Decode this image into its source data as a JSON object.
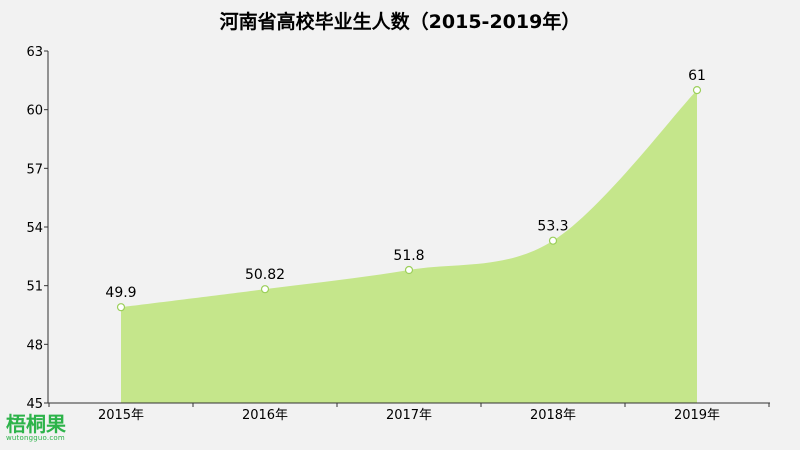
{
  "chart_data": {
    "type": "area",
    "title": "河南省高校毕业生人数（2015-2019年）",
    "xlabel": "",
    "ylabel": "",
    "categories": [
      "2015年",
      "2016年",
      "2017年",
      "2018年",
      "2019年"
    ],
    "values": [
      49.9,
      50.82,
      51.8,
      53.3,
      61
    ],
    "data_labels": [
      "49.9",
      "50.82",
      "51.8",
      "53.3",
      "61"
    ],
    "ylim": [
      45,
      63
    ],
    "yticks": [
      "45",
      "48",
      "51",
      "54",
      "57",
      "60",
      "63"
    ],
    "grid": false,
    "legend": "none",
    "colors": {
      "fill": "#c5e68b",
      "marker_stroke": "#9bcf5a",
      "marker_fill": "#ffffff",
      "axis": "#333333",
      "text": "#000000"
    }
  },
  "watermark": {
    "brand": "梧桐果",
    "url": "wutongguo.com"
  }
}
